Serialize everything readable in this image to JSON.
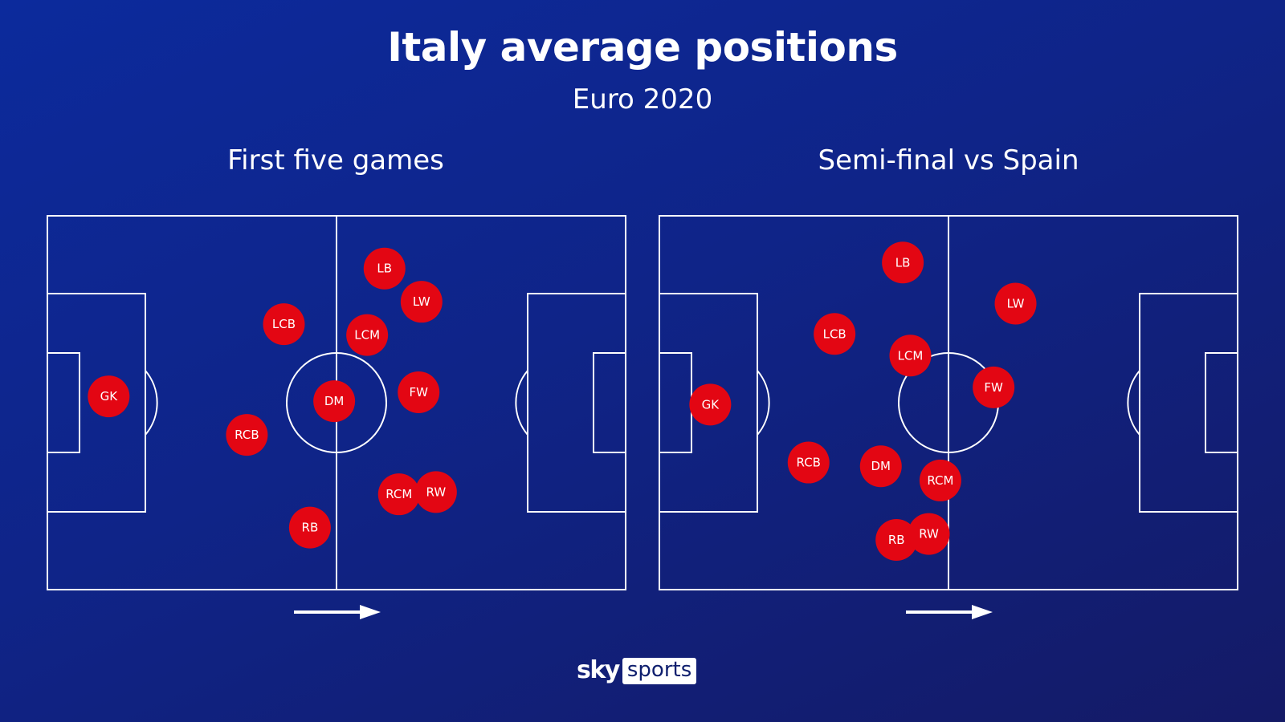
{
  "title": "Italy average positions",
  "subtitle": "Euro 2020",
  "colors": {
    "background": "#0f2488",
    "marker": "#e30613",
    "lines": "#ffffff"
  },
  "logo": {
    "sky": "sky",
    "sports": "sports"
  },
  "chart_data": [
    {
      "type": "scatter",
      "title": "First five games",
      "direction": "left-to-right",
      "points": [
        {
          "label": "GK",
          "x": 10.6,
          "y": 48.3
        },
        {
          "label": "LCB",
          "x": 40.9,
          "y": 29.0
        },
        {
          "label": "RCB",
          "x": 34.5,
          "y": 58.6
        },
        {
          "label": "DM",
          "x": 49.6,
          "y": 49.6
        },
        {
          "label": "LB",
          "x": 58.3,
          "y": 14.1
        },
        {
          "label": "LW",
          "x": 64.7,
          "y": 23.0
        },
        {
          "label": "LCM",
          "x": 55.3,
          "y": 31.9
        },
        {
          "label": "FW",
          "x": 64.2,
          "y": 47.2
        },
        {
          "label": "RCM",
          "x": 60.8,
          "y": 74.5
        },
        {
          "label": "RW",
          "x": 67.2,
          "y": 73.9
        },
        {
          "label": "RB",
          "x": 45.4,
          "y": 83.4
        }
      ]
    },
    {
      "type": "scatter",
      "title": "Semi-final vs Spain",
      "direction": "left-to-right",
      "points": [
        {
          "label": "GK",
          "x": 8.8,
          "y": 50.5
        },
        {
          "label": "LB",
          "x": 42.1,
          "y": 12.5
        },
        {
          "label": "LCB",
          "x": 30.3,
          "y": 31.6
        },
        {
          "label": "LCM",
          "x": 43.4,
          "y": 37.4
        },
        {
          "label": "LW",
          "x": 61.6,
          "y": 23.5
        },
        {
          "label": "FW",
          "x": 57.8,
          "y": 45.9
        },
        {
          "label": "RCB",
          "x": 25.8,
          "y": 66.0
        },
        {
          "label": "DM",
          "x": 38.3,
          "y": 67.0
        },
        {
          "label": "RCM",
          "x": 48.6,
          "y": 70.8
        },
        {
          "label": "RB",
          "x": 41.0,
          "y": 86.7
        },
        {
          "label": "RW",
          "x": 46.6,
          "y": 85.1
        }
      ]
    }
  ]
}
